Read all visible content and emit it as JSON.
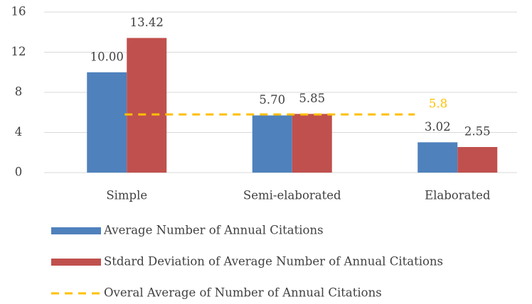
{
  "chart_data": {
    "type": "bar",
    "categories": [
      "Simple",
      "Semi-elaborated",
      "Elaborated"
    ],
    "series": [
      {
        "name": "Average Number of Annual Citations",
        "color": "#4f81bd",
        "values": [
          10,
          5.7,
          3.02
        ],
        "value_labels": [
          "10.00",
          "5.70",
          "3.02"
        ]
      },
      {
        "name": "Stdard Deviation of Average Number of Annual Citations",
        "color": "#c0504d",
        "values": [
          13.42,
          5.85,
          2.55
        ],
        "value_labels": [
          "13.42",
          "5.85",
          "2.55"
        ]
      }
    ],
    "reference_line": {
      "name": "Overal Average of Number of Annual Citations",
      "value": 5.8,
      "color": "#ffc000",
      "dashed": true
    },
    "ylim": [
      0,
      16
    ],
    "yticks": [
      0,
      4,
      8,
      12,
      16
    ],
    "grid": true,
    "legend": "bottom"
  }
}
